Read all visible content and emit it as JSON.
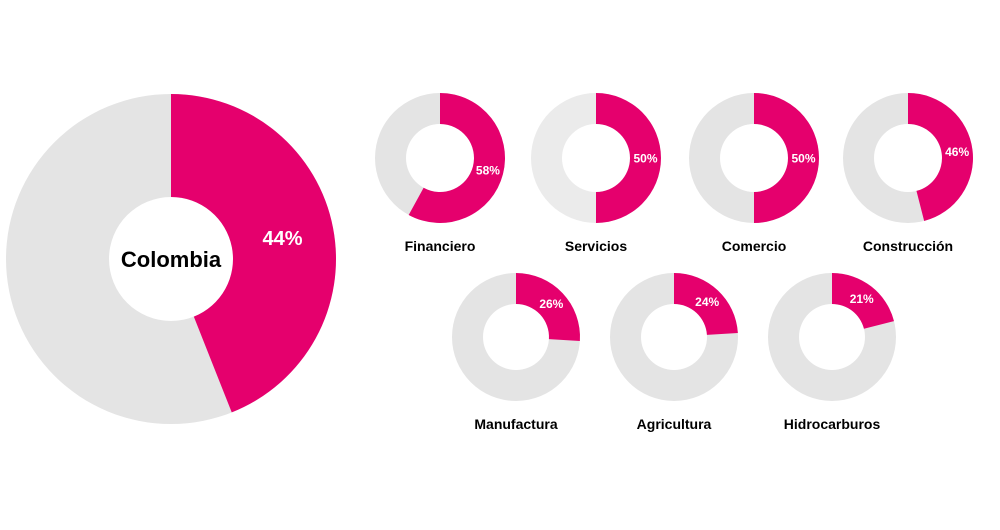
{
  "colors": {
    "accent": "#e5006d",
    "rest": "#e4e4e4",
    "rest_light": "#ebebeb",
    "value_text": "#ffffff",
    "label_text": "#000000"
  },
  "chart_data": [
    {
      "type": "pie",
      "title": "Colombia",
      "categories": [
        "Colombia"
      ],
      "values": [
        44
      ],
      "value_labels": [
        "44%"
      ],
      "donut": true
    },
    {
      "type": "pie",
      "categories": [
        "Financiero",
        "Servicios",
        "Comercio",
        "Construcción",
        "Manufactura",
        "Agricultura",
        "Hidrocarburos"
      ],
      "values": [
        58,
        50,
        50,
        46,
        26,
        24,
        21
      ],
      "value_labels": [
        "58%",
        "50%",
        "50%",
        "46%",
        "26%",
        "24%",
        "21%"
      ],
      "donut": true
    }
  ]
}
